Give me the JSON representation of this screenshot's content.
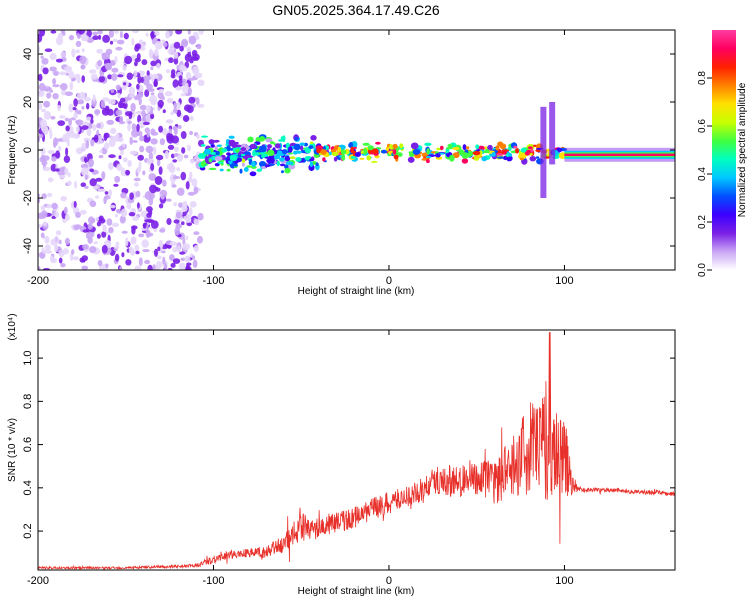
{
  "title": "GN05.2025.364.17.49.C26",
  "chart_data": [
    {
      "type": "heatmap",
      "name": "spectrogram",
      "xlabel": "Height of straight line (km)",
      "ylabel": "Frequency (Hz)",
      "xlim": [
        -200,
        163
      ],
      "ylim": [
        -50,
        50
      ],
      "xticks": [
        -200,
        -100,
        0,
        100
      ],
      "yticks": [
        -40,
        -20,
        0,
        20,
        40
      ],
      "colorbar": {
        "label": "Normalized spectral amplitude",
        "range": [
          0,
          1
        ],
        "ticks": [
          "0.0",
          "0.2",
          "0.4",
          "0.6",
          "0.8"
        ],
        "colors": [
          "#ffffff",
          "#c9a6f5",
          "#7a1fe6",
          "#3b00ff",
          "#0050ff",
          "#00c8ff",
          "#00ffc0",
          "#40ff40",
          "#c8ff00",
          "#ffe000",
          "#ff8000",
          "#ff2000",
          "#ff0060",
          "#ff3ca0"
        ]
      },
      "regions": [
        {
          "x_range": [
            -200,
            -107
          ],
          "freq_range": [
            -50,
            50
          ],
          "amplitude": 0.1,
          "description": "broadband noise"
        },
        {
          "x_range": [
            -107,
            -40
          ],
          "freq_center": -2,
          "spread": 6,
          "amplitude": 0.45
        },
        {
          "x_range": [
            -40,
            100
          ],
          "freq_center": -1,
          "spread": 3,
          "amplitude": 0.75
        },
        {
          "x_range": [
            100,
            163
          ],
          "freq_center": -2,
          "spread": 2,
          "amplitude": 0.95
        }
      ]
    },
    {
      "type": "line",
      "name": "snr",
      "xlabel": "Height of straight line (km)",
      "ylabel": "SNR (10 * v/v)",
      "y_multiplier": "(x10⁴)",
      "xlim": [
        -200,
        163
      ],
      "ylim": [
        0.02,
        1.13
      ],
      "xticks": [
        -200,
        -100,
        0,
        100
      ],
      "yticks": [
        "0.2",
        "0.4",
        "0.6",
        "0.8",
        "1.0"
      ],
      "series": [
        {
          "name": "SNR",
          "color": "#e8302a",
          "x": [
            -200,
            -150,
            -110,
            -100,
            -90,
            -80,
            -70,
            -60,
            -50,
            -45,
            -40,
            -30,
            -20,
            -10,
            0,
            10,
            20,
            25,
            30,
            40,
            50,
            60,
            70,
            80,
            85,
            90,
            95,
            100,
            105,
            110,
            120,
            130,
            140,
            150,
            163
          ],
          "y": [
            0.03,
            0.03,
            0.04,
            0.07,
            0.09,
            0.1,
            0.1,
            0.14,
            0.22,
            0.2,
            0.22,
            0.24,
            0.26,
            0.3,
            0.33,
            0.36,
            0.39,
            0.43,
            0.44,
            0.43,
            0.45,
            0.42,
            0.5,
            0.58,
            0.6,
            0.62,
            0.6,
            0.55,
            0.4,
            0.39,
            0.39,
            0.39,
            0.38,
            0.38,
            0.37
          ],
          "noise_amplitude": [
            0.005,
            0.005,
            0.008,
            0.02,
            0.02,
            0.02,
            0.03,
            0.04,
            0.07,
            0.06,
            0.05,
            0.05,
            0.05,
            0.05,
            0.05,
            0.05,
            0.06,
            0.06,
            0.07,
            0.08,
            0.09,
            0.1,
            0.14,
            0.22,
            0.26,
            0.3,
            0.25,
            0.2,
            0.03,
            0.01,
            0.01,
            0.01,
            0.01,
            0.01,
            0.01
          ]
        }
      ]
    }
  ]
}
